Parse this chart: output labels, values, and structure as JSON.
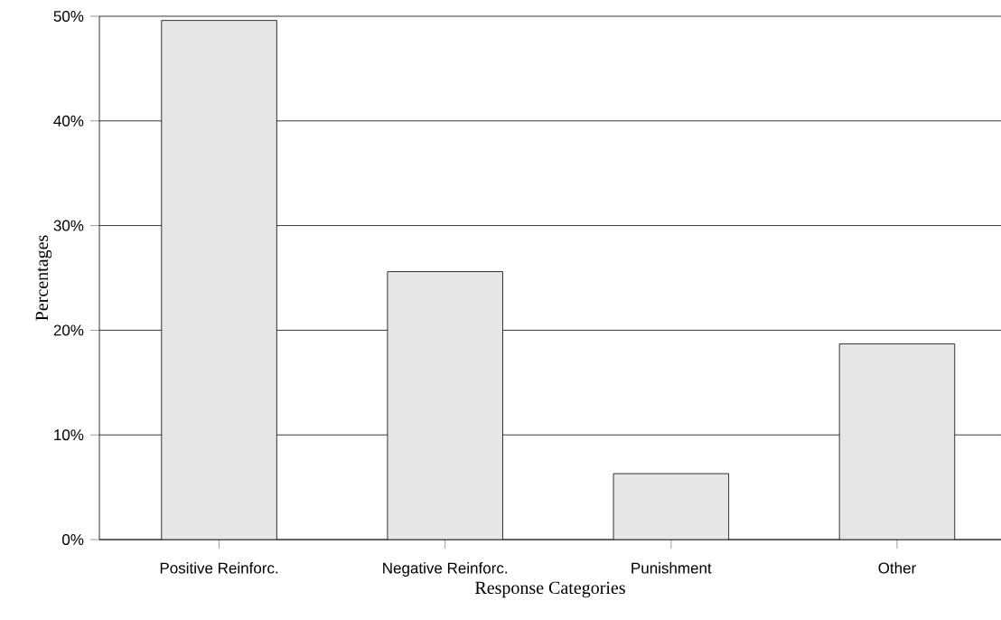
{
  "chart_data": {
    "type": "bar",
    "xlabel": "Response Categories",
    "ylabel": "Percentages",
    "categories": [
      "Positive Reinforc.",
      "Negative Reinforc.",
      "Punishment",
      "Other"
    ],
    "values": [
      49.6,
      25.6,
      6.3,
      18.7
    ],
    "color": "#e6e6e6",
    "ylim": [
      0,
      50
    ],
    "yticks": [
      {
        "value": 0,
        "label": "0%"
      },
      {
        "value": 10,
        "label": "10%"
      },
      {
        "value": 20,
        "label": "20%"
      },
      {
        "value": 30,
        "label": "30%"
      },
      {
        "value": 40,
        "label": "40%"
      },
      {
        "value": 50,
        "label": "50%"
      }
    ],
    "grid": "y"
  }
}
